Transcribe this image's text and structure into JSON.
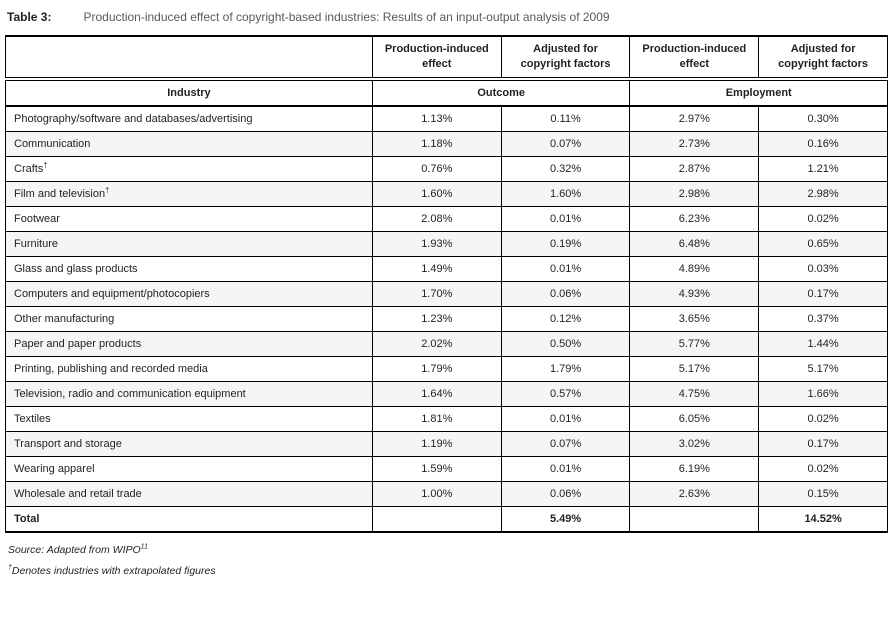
{
  "caption": {
    "label": "Table 3:",
    "text": "Production-induced effect of copyright-based industries: Results of an input-output analysis of 2009"
  },
  "colors": {
    "caption_text": "#58595b",
    "row_stripe": "#f5f5f5",
    "border": "#000000"
  },
  "table": {
    "columns": [
      "Production-induced effect",
      "Adjusted for copyright factors",
      "Production-induced effect",
      "Adjusted for copyright factors"
    ],
    "group_headers": {
      "industry": "Industry",
      "outcome": "Outcome",
      "employment": "Employment"
    },
    "rows": [
      {
        "industry": "Photography/software and databases/advertising",
        "sup": "",
        "values": [
          "1.13%",
          "0.11%",
          "2.97%",
          "0.30%"
        ]
      },
      {
        "industry": "Communication",
        "sup": "",
        "values": [
          "1.18%",
          "0.07%",
          "2.73%",
          "0.16%"
        ]
      },
      {
        "industry": "Crafts",
        "sup": "†",
        "values": [
          "0.76%",
          "0.32%",
          "2.87%",
          "1.21%"
        ]
      },
      {
        "industry": "Film and television",
        "sup": "†",
        "values": [
          "1.60%",
          "1.60%",
          "2.98%",
          "2.98%"
        ]
      },
      {
        "industry": "Footwear",
        "sup": "",
        "values": [
          "2.08%",
          "0.01%",
          "6.23%",
          "0.02%"
        ]
      },
      {
        "industry": "Furniture",
        "sup": "",
        "values": [
          "1.93%",
          "0.19%",
          "6.48%",
          "0.65%"
        ]
      },
      {
        "industry": "Glass and glass products",
        "sup": "",
        "values": [
          "1.49%",
          "0.01%",
          "4.89%",
          "0.03%"
        ]
      },
      {
        "industry": "Computers and equipment/photocopiers",
        "sup": "",
        "values": [
          "1.70%",
          "0.06%",
          "4.93%",
          "0.17%"
        ]
      },
      {
        "industry": "Other manufacturing",
        "sup": "",
        "values": [
          "1.23%",
          "0.12%",
          "3.65%",
          "0.37%"
        ]
      },
      {
        "industry": "Paper and paper products",
        "sup": "",
        "values": [
          "2.02%",
          "0.50%",
          "5.77%",
          "1.44%"
        ]
      },
      {
        "industry": "Printing, publishing and recorded media",
        "sup": "",
        "values": [
          "1.79%",
          "1.79%",
          "5.17%",
          "5.17%"
        ]
      },
      {
        "industry": "Television, radio and communication equipment",
        "sup": "",
        "values": [
          "1.64%",
          "0.57%",
          "4.75%",
          "1.66%"
        ]
      },
      {
        "industry": "Textiles",
        "sup": "",
        "values": [
          "1.81%",
          "0.01%",
          "6.05%",
          "0.02%"
        ]
      },
      {
        "industry": "Transport and storage",
        "sup": "",
        "values": [
          "1.19%",
          "0.07%",
          "3.02%",
          "0.17%"
        ]
      },
      {
        "industry": "Wearing apparel",
        "sup": "",
        "values": [
          "1.59%",
          "0.01%",
          "6.19%",
          "0.02%"
        ]
      },
      {
        "industry": "Wholesale and retail trade",
        "sup": "",
        "values": [
          "1.00%",
          "0.06%",
          "2.63%",
          "0.15%"
        ]
      }
    ],
    "total_row": {
      "label": "Total",
      "values": [
        "",
        "5.49%",
        "",
        "14.52%"
      ]
    }
  },
  "footnotes": {
    "source_text": "Source: Adapted from WIPO",
    "source_sup": "11",
    "dagger_sup": "†",
    "dagger_text": "Denotes industries with extrapolated figures"
  }
}
